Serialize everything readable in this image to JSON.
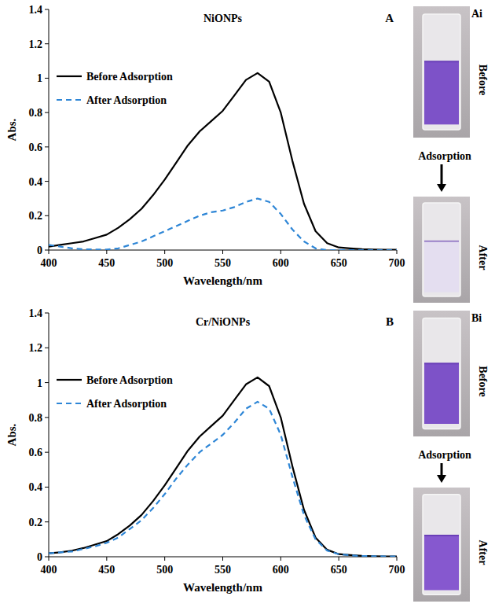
{
  "chart_data": [
    {
      "type": "line",
      "title": "NiONPs",
      "panel": "A",
      "x_label": "Wavelength/nm",
      "y_label": "Abs.",
      "xlim": [
        400,
        700
      ],
      "xticks": [
        400,
        450,
        500,
        550,
        600,
        650,
        700
      ],
      "ylim": [
        0,
        1.4
      ],
      "yticks": [
        0,
        0.2,
        0.4,
        0.6,
        0.8,
        1,
        1.2,
        1.4
      ],
      "grid": false,
      "legend": "upper left",
      "annotations": [
        "Ai",
        "Before",
        "Adsorption",
        "After"
      ],
      "x": [
        400,
        410,
        420,
        430,
        440,
        450,
        460,
        470,
        480,
        490,
        500,
        510,
        520,
        530,
        540,
        550,
        560,
        570,
        580,
        590,
        600,
        610,
        620,
        630,
        640,
        650,
        660,
        670,
        680,
        690,
        700
      ],
      "series": [
        {
          "name": "Before Adsorption",
          "color": "#000000",
          "line_style": "solid",
          "values": [
            0.02,
            0.03,
            0.04,
            0.05,
            0.07,
            0.09,
            0.13,
            0.18,
            0.24,
            0.32,
            0.41,
            0.51,
            0.61,
            0.69,
            0.75,
            0.81,
            0.9,
            0.99,
            1.03,
            0.98,
            0.8,
            0.52,
            0.27,
            0.11,
            0.04,
            0.015,
            0.01,
            0.005,
            0.003,
            0.002,
            0.002
          ]
        },
        {
          "name": "After Adsorption",
          "color": "#2e86d6",
          "line_style": "dashed",
          "values": [
            0.03,
            0.02,
            0.01,
            0.005,
            0.003,
            0.003,
            0.01,
            0.03,
            0.05,
            0.08,
            0.11,
            0.14,
            0.17,
            0.2,
            0.22,
            0.23,
            0.25,
            0.28,
            0.3,
            0.28,
            0.21,
            0.12,
            0.05,
            0.01,
            0,
            0,
            0,
            0,
            0,
            0,
            0
          ]
        }
      ]
    },
    {
      "type": "line",
      "title": "Cr/NiONPs",
      "panel": "B",
      "x_label": "Wavelength/nm",
      "y_label": "Abs.",
      "xlim": [
        400,
        700
      ],
      "xticks": [
        400,
        450,
        500,
        550,
        600,
        650,
        700
      ],
      "ylim": [
        0,
        1.4
      ],
      "yticks": [
        0,
        0.2,
        0.4,
        0.6,
        0.8,
        1,
        1.2,
        1.4
      ],
      "grid": false,
      "legend": "upper left",
      "annotations": [
        "Bi",
        "Before",
        "Adsorption",
        "After"
      ],
      "x": [
        400,
        410,
        420,
        430,
        440,
        450,
        460,
        470,
        480,
        490,
        500,
        510,
        520,
        530,
        540,
        550,
        560,
        570,
        580,
        590,
        600,
        610,
        620,
        630,
        640,
        650,
        660,
        670,
        680,
        690,
        700
      ],
      "series": [
        {
          "name": "Before Adsorption",
          "color": "#000000",
          "line_style": "solid",
          "values": [
            0.02,
            0.025,
            0.035,
            0.05,
            0.07,
            0.09,
            0.13,
            0.18,
            0.24,
            0.32,
            0.41,
            0.51,
            0.61,
            0.69,
            0.75,
            0.81,
            0.9,
            0.99,
            1.03,
            0.98,
            0.8,
            0.52,
            0.27,
            0.11,
            0.04,
            0.015,
            0.01,
            0.005,
            0.003,
            0.002,
            0.002
          ]
        },
        {
          "name": "After Adsorption",
          "color": "#2e86d6",
          "line_style": "dashed",
          "values": [
            0.02,
            0.025,
            0.03,
            0.045,
            0.06,
            0.08,
            0.11,
            0.16,
            0.21,
            0.28,
            0.36,
            0.45,
            0.53,
            0.6,
            0.65,
            0.7,
            0.77,
            0.85,
            0.89,
            0.85,
            0.7,
            0.46,
            0.24,
            0.1,
            0.035,
            0.015,
            0.008,
            0.004,
            0.003,
            0.002,
            0.002
          ]
        }
      ]
    }
  ]
}
